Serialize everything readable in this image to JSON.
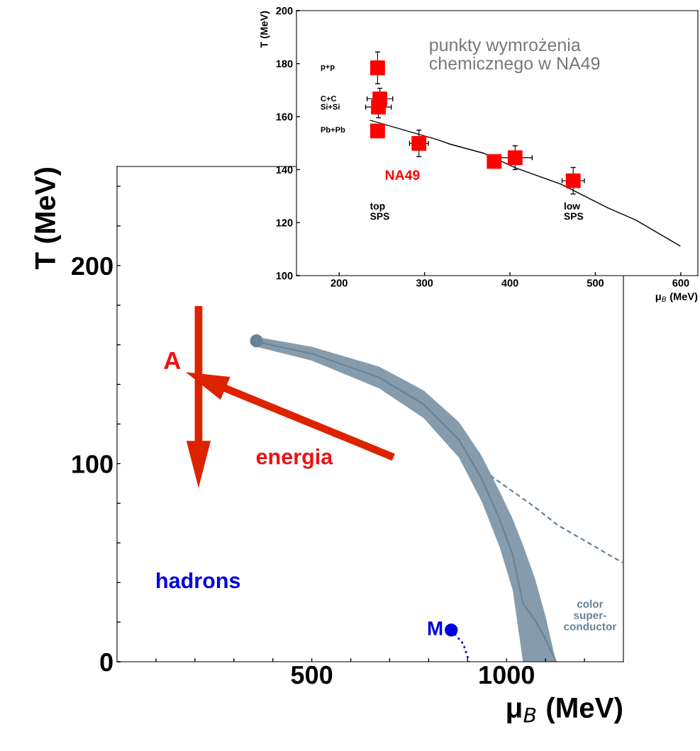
{
  "chart_data": [
    {
      "type": "line",
      "xlabel": "μ$_{B}$ (MeV)",
      "ylabel": "T (MeV)",
      "xlim": [
        0,
        1300
      ],
      "ylim": [
        0,
        250
      ],
      "xticks": [
        {
          "value": 100,
          "label": null
        },
        {
          "value": 200,
          "label": null
        },
        {
          "value": 300,
          "label": null
        },
        {
          "value": 400,
          "label": null
        },
        500,
        {
          "value": 600,
          "label": null
        },
        {
          "value": 700,
          "label": null
        },
        {
          "value": 800,
          "label": null
        },
        {
          "value": 900,
          "label": null
        },
        1000,
        {
          "value": 1100,
          "label": null
        },
        {
          "value": 1200,
          "label": null
        }
      ],
      "yticks": [
        0,
        {
          "value": 20,
          "label": null
        },
        {
          "value": 40,
          "label": null
        },
        {
          "value": 60,
          "label": null
        },
        {
          "value": 80,
          "label": null
        },
        100,
        {
          "value": 120,
          "label": null
        },
        {
          "value": 140,
          "label": null
        },
        {
          "value": 160,
          "label": null
        },
        {
          "value": 180,
          "label": null
        },
        200,
        {
          "value": 220,
          "label": null
        },
        {
          "value": 240,
          "label": null
        }
      ],
      "grid": false,
      "series": [
        {
          "color": "#688398",
          "x": [
            358,
            500,
            673,
            787,
            878,
            936,
            982,
            1016,
            1042,
            1073,
            1100,
            1127
          ],
          "values": [
            161.5,
            155.5,
            143.5,
            130,
            112,
            92.5,
            72,
            54,
            29.5,
            21,
            11.5,
            0
          ],
          "lower": [
            159,
            152,
            138,
            123,
            103,
            81,
            58,
            36,
            0,
            0,
            0,
            0
          ],
          "upper": [
            164,
            159,
            149,
            137,
            121,
            104,
            86,
            72,
            59,
            42,
            23,
            0
          ]
        },
        {
          "type": "scatter",
          "color": "#688398",
          "marker": "circle",
          "x": [
            358
          ],
          "values": [
            162
          ]
        },
        {
          "color": "#688398",
          "line_style": "dashed",
          "x": [
            958,
            1073,
            1131,
            1298
          ],
          "values": [
            94,
            78,
            69,
            50
          ]
        },
        {
          "color": "#0000dd",
          "line_style": "dotted",
          "x": [
            858,
            889,
            904
          ],
          "values": [
            16,
            9,
            0
          ]
        },
        {
          "type": "scatter",
          "color": "#0000dd",
          "marker": "circle",
          "x": [
            858
          ],
          "values": [
            16
          ]
        }
      ],
      "annotations": [
        "A",
        "energia",
        "hadrons",
        "color\nsuper-\nconductor",
        {
          "text": "M",
          "x": 858,
          "y": 16
        }
      ]
    },
    {
      "type": "scatter",
      "xlabel": "μ$_{B}$ (MeV)",
      "ylabel": "T (MeV)",
      "xlim": [
        150,
        620
      ],
      "ylim": [
        100,
        200
      ],
      "xticks": [
        200,
        300,
        400,
        500,
        600
      ],
      "yticks": [
        100,
        120,
        140,
        160,
        180,
        200
      ],
      "grid": false,
      "series": [
        {
          "color": "#ff0000",
          "marker": "square",
          "x": [
            245,
            247.7,
            246,
            245,
            293.4,
            381.5,
            406,
            474
          ],
          "values": [
            178.4,
            166.7,
            163.6,
            154.6,
            149.9,
            143.1,
            144.5,
            135.8
          ],
          "errors": [
            6,
            4,
            4,
            null,
            5,
            null,
            4.5,
            5
          ],
          "xerrors": [
            null,
            15,
            15,
            null,
            11,
            null,
            20,
            13
          ]
        },
        {
          "type": "line",
          "color": "#000000",
          "line_style": "solid",
          "x": [
            236.6,
            315,
            330,
            369,
            407,
            459.6,
            515,
            547,
            599
          ],
          "values": [
            158.6,
            151.3,
            149.6,
            146.2,
            140.6,
            134.5,
            125.5,
            121,
            111.2
          ]
        }
      ],
      "annotations": [
        "punkty wymrożenia\nchemicznego w NA49",
        "p+p",
        "C+C\nSi+Si",
        "Pb+Pb",
        "NA49",
        "top\nSPS",
        "low\nSPS"
      ]
    }
  ]
}
